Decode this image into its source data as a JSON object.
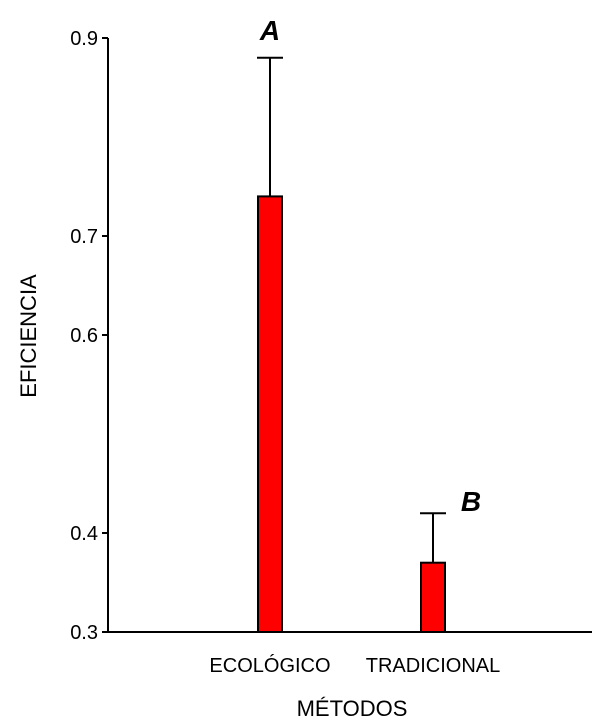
{
  "chart_data": {
    "type": "bar",
    "title": "",
    "xlabel": "MÉTODOS",
    "ylabel": "EFICIENCIA",
    "ylim": [
      0.3,
      0.9
    ],
    "yticks": [
      {
        "value": 0.3,
        "label": "0.3"
      },
      {
        "value": 0.4,
        "label": "0.4"
      },
      {
        "value": 0.6,
        "label": "0.6"
      },
      {
        "value": 0.7,
        "label": "0.7"
      },
      {
        "value": 0.9,
        "label": "0.9"
      }
    ],
    "categories": [
      "ECOLÓGICO",
      "TRADICIONAL"
    ],
    "values": [
      0.74,
      0.37
    ],
    "error_upper": [
      0.88,
      0.42
    ],
    "significance_letters": [
      "A",
      "B"
    ],
    "bar_color": "#ff0000",
    "grid": false,
    "legend": "none"
  }
}
